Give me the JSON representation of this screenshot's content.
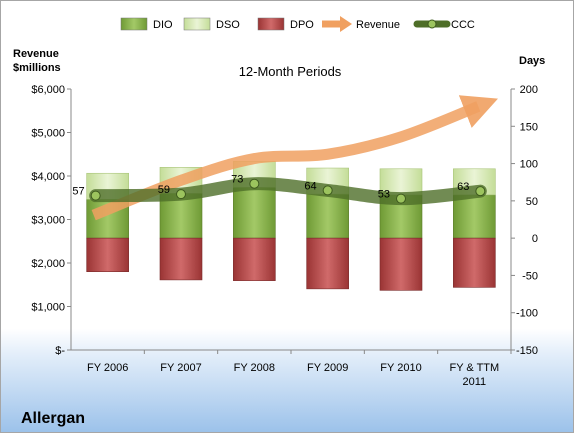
{
  "chart_data": {
    "type": "bar",
    "title": "12-Month Periods",
    "company": "Allergan",
    "left_axis": {
      "label": [
        "Revenue",
        "$millions"
      ],
      "ticks": [
        "$-",
        "$1,000",
        "$2,000",
        "$3,000",
        "$4,000",
        "$5,000",
        "$6,000"
      ],
      "range": [
        0,
        6000
      ]
    },
    "right_axis": {
      "label": "Days",
      "ticks": [
        "-150",
        "-100",
        "-50",
        "0",
        "50",
        "100",
        "150",
        "200"
      ],
      "range": [
        -150,
        200
      ]
    },
    "categories": [
      "FY 2006",
      "FY 2007",
      "FY 2008",
      "FY 2009",
      "FY 2010",
      "FY & TTM 2011"
    ],
    "legend": [
      "DIO",
      "DSO",
      "DPO",
      "Revenue",
      "CCC"
    ],
    "colors": {
      "DIO": "#8db54e",
      "DSO": "#d8e9b8",
      "DPO": "#b84a4a",
      "Revenue": "#f0a060",
      "CCC": "#4e6e28"
    },
    "series": [
      {
        "name": "DIO",
        "axis": "days",
        "values": [
          52,
          60,
          68,
          59,
          58,
          58
        ]
      },
      {
        "name": "DSO",
        "axis": "days",
        "values": [
          35,
          35,
          35,
          35,
          35,
          35
        ]
      },
      {
        "name": "DPO",
        "axis": "days",
        "values": [
          -45,
          -56,
          -57,
          -68,
          -70,
          -66
        ]
      },
      {
        "name": "CCC",
        "axis": "days",
        "values": [
          57,
          59,
          73,
          64,
          53,
          63
        ]
      },
      {
        "name": "Revenue",
        "axis": "dollars",
        "values": [
          3100,
          3900,
          4400,
          4500,
          4900,
          5600
        ]
      }
    ],
    "ccc_labels": [
      "57",
      "59",
      "73",
      "64",
      "53",
      "63"
    ]
  }
}
